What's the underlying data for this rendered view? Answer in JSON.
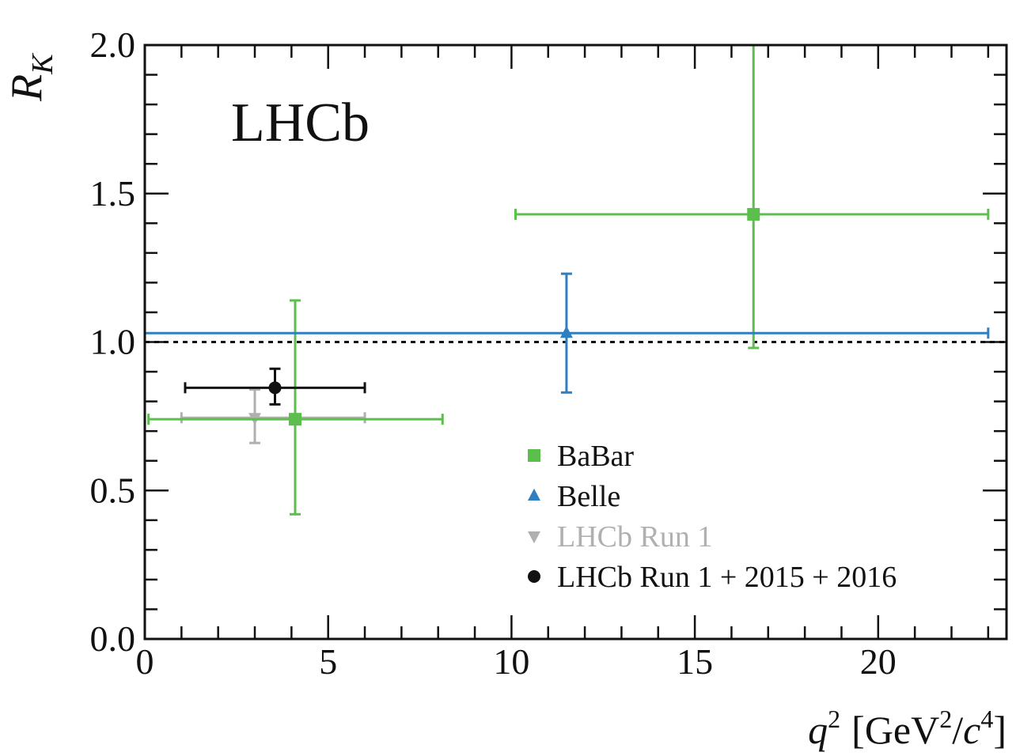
{
  "experiment_label": "LHCb",
  "chart_data": {
    "type": "scatter",
    "xlabel": {
      "q": "q",
      "q_exp": "2",
      "open": "[GeV",
      "gev_exp": "2",
      "slash": "/",
      "c": "c",
      "c_exp": "4",
      "close": "]"
    },
    "ylabel": {
      "main": "R",
      "sub": "K"
    },
    "xlim": [
      0,
      23.5
    ],
    "ylim": [
      0,
      2.0
    ],
    "xticks": [
      0,
      5,
      10,
      15,
      20
    ],
    "xtick_labels": [
      "0",
      "5",
      "10",
      "15",
      "20"
    ],
    "yticks": [
      0.0,
      0.5,
      1.0,
      1.5,
      2.0
    ],
    "ytick_labels": [
      "0.0",
      "0.5",
      "1.0",
      "1.5",
      "2.0"
    ],
    "reference_line": {
      "y": 1.0,
      "style": "dotted",
      "color": "#111111"
    },
    "legend_position": "lower-right",
    "series": [
      {
        "name": "BaBar",
        "color": "#5cbf4d",
        "marker": "square",
        "points": [
          {
            "x": 4.1,
            "y": 0.74,
            "xlo": 0.1,
            "xhi": 8.12,
            "ylo": 0.42,
            "yhi": 1.14
          },
          {
            "x": 16.6,
            "y": 1.43,
            "xlo": 10.11,
            "xhi": 23.0,
            "ylo": 0.98,
            "yhi": 2.0
          }
        ]
      },
      {
        "name": "Belle",
        "color": "#2f7fc1",
        "marker": "triangle-up",
        "points": [
          {
            "x": 0.0,
            "y": 1.03,
            "xlo": 0.0,
            "xhi": 23.0,
            "ylo": 1.03,
            "yhi": 1.03
          },
          {
            "x": 11.5,
            "y": 1.03,
            "xlo": 11.5,
            "xhi": 11.5,
            "ylo": 0.83,
            "yhi": 1.23
          }
        ]
      },
      {
        "name": "LHCb Run 1",
        "color": "#b0b0b0",
        "marker": "triangle-down",
        "points": [
          {
            "x": 3.0,
            "y": 0.745,
            "xlo": 1.0,
            "xhi": 6.0,
            "ylo": 0.66,
            "yhi": 0.84
          }
        ]
      },
      {
        "name": "LHCb Run 1 + 2015 + 2016",
        "color": "#111111",
        "marker": "circle",
        "points": [
          {
            "x": 3.55,
            "y": 0.846,
            "xlo": 1.1,
            "xhi": 6.0,
            "ylo": 0.79,
            "yhi": 0.91
          }
        ]
      }
    ]
  }
}
